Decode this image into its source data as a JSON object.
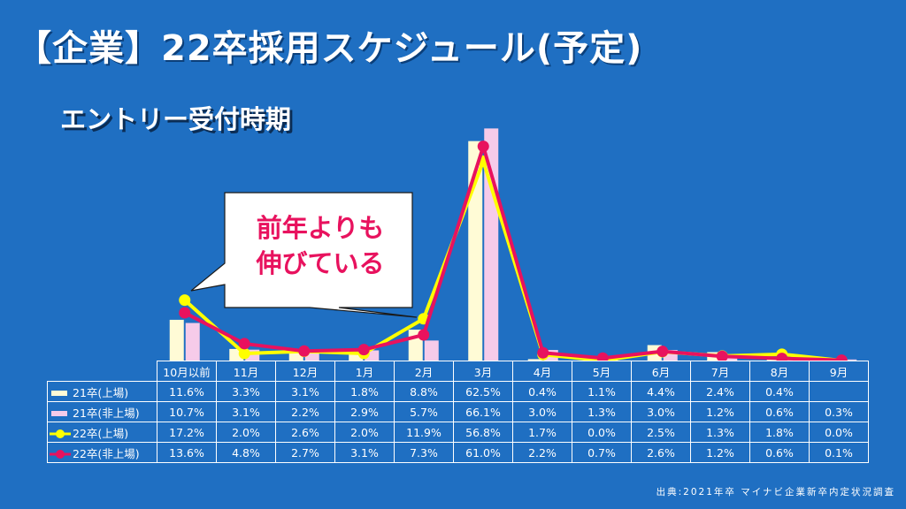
{
  "title": "【企業】22卒採用スケジュール(予定)",
  "subtitle": "エントリー受付時期",
  "callout": {
    "line1": "前年よりも",
    "line2": "伸びている"
  },
  "source": "出典:2021年卒 マイナビ企業新卒内定状況調査",
  "colors": {
    "background": "#1f6fc2",
    "bar_21_listed": "#fffbd6",
    "bar_21_unlisted": "#f6cbe9",
    "line_22_listed": "#ffff00",
    "line_22_unlisted": "#e8125e"
  },
  "chart_data": {
    "type": "bar",
    "categories": [
      "10月以前",
      "11月",
      "12月",
      "1月",
      "2月",
      "3月",
      "4月",
      "5月",
      "6月",
      "7月",
      "8月",
      "9月"
    ],
    "ylim": [
      0,
      75
    ],
    "grid": false,
    "series": [
      {
        "name": "21卒(上場)",
        "kind": "bar",
        "values": [
          11.6,
          3.3,
          3.1,
          1.8,
          8.8,
          62.5,
          0.4,
          1.1,
          4.4,
          2.4,
          0.4,
          null
        ],
        "labels": [
          "11.6%",
          "3.3%",
          "3.1%",
          "1.8%",
          "8.8%",
          "62.5%",
          "0.4%",
          "1.1%",
          "4.4%",
          "2.4%",
          "0.4%",
          ""
        ]
      },
      {
        "name": "21卒(非上場)",
        "kind": "bar",
        "values": [
          10.7,
          3.1,
          2.2,
          2.9,
          5.7,
          66.1,
          3.0,
          1.3,
          3.0,
          1.2,
          0.6,
          0.3
        ],
        "labels": [
          "10.7%",
          "3.1%",
          "2.2%",
          "2.9%",
          "5.7%",
          "66.1%",
          "3.0%",
          "1.3%",
          "3.0%",
          "1.2%",
          "0.6%",
          "0.3%"
        ]
      },
      {
        "name": "22卒(上場)",
        "kind": "line",
        "values": [
          17.2,
          2.0,
          2.6,
          2.0,
          11.9,
          56.8,
          1.7,
          0.0,
          2.5,
          1.3,
          1.8,
          0.0
        ],
        "labels": [
          "17.2%",
          "2.0%",
          "2.6%",
          "2.0%",
          "11.9%",
          "56.8%",
          "1.7%",
          "0.0%",
          "2.5%",
          "1.3%",
          "1.8%",
          "0.0%"
        ]
      },
      {
        "name": "22卒(非上場)",
        "kind": "line",
        "values": [
          13.6,
          4.8,
          2.7,
          3.1,
          7.3,
          61.0,
          2.2,
          0.7,
          2.6,
          1.2,
          0.6,
          0.1
        ],
        "labels": [
          "13.6%",
          "4.8%",
          "2.7%",
          "3.1%",
          "7.3%",
          "61.0%",
          "2.2%",
          "0.7%",
          "2.6%",
          "1.2%",
          "0.6%",
          "0.1%"
        ]
      }
    ]
  }
}
